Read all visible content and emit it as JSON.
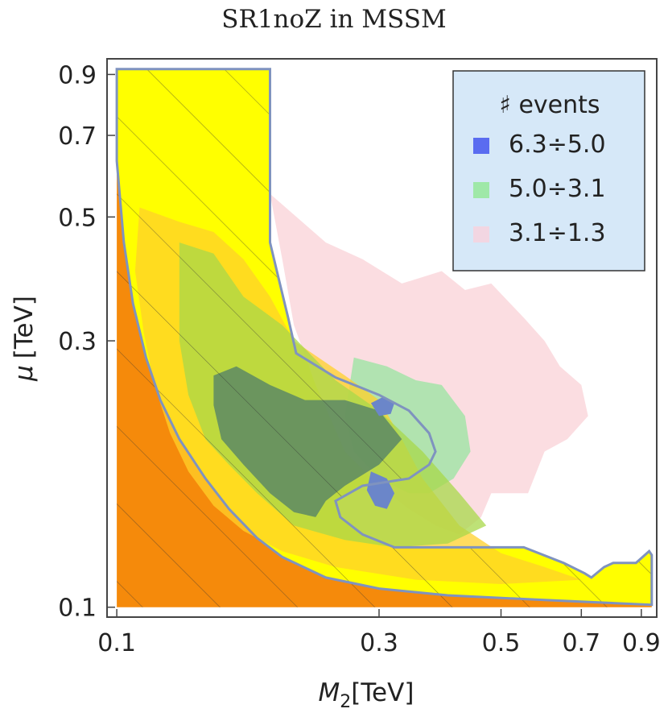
{
  "chart_data": {
    "type": "contour",
    "title": "SR1noZ in MSSM",
    "xlabel": "M2 [TeV]",
    "ylabel": "μ [TeV]",
    "xlabel_parts": {
      "symbol": "M",
      "sub": "2",
      "unit": "[TeV]"
    },
    "ylabel_parts": {
      "symbol": "μ",
      "unit": "[TeV]"
    },
    "x_scale": "log",
    "y_scale": "log",
    "xlim": [
      0.096,
      0.96
    ],
    "ylim": [
      0.096,
      0.96
    ],
    "x_ticks": [
      0.1,
      0.3,
      0.5,
      0.7,
      0.9
    ],
    "x_tick_labels": [
      "0.1",
      "0.3",
      "0.5",
      "0.7",
      "0.9"
    ],
    "y_ticks": [
      0.1,
      0.3,
      0.5,
      0.7,
      0.9
    ],
    "y_tick_labels": [
      "0.1",
      "0.3",
      "0.5",
      "0.7",
      "0.9"
    ],
    "legend": {
      "title": "♯ events",
      "position": "top-right",
      "entries": [
        {
          "label": "6.3÷5.0",
          "color": "#5a6cf0"
        },
        {
          "label": "5.0÷3.1",
          "color": "#9fe8a8"
        },
        {
          "label": "3.1÷1.3",
          "color": "#f2d6e2"
        }
      ]
    },
    "regions": {
      "excluded_orange": {
        "color": "#f58a0b",
        "boundary": [
          [
            0.1,
            0.63
          ],
          [
            0.103,
            0.45
          ],
          [
            0.107,
            0.35
          ],
          [
            0.113,
            0.28
          ],
          [
            0.12,
            0.235
          ],
          [
            0.13,
            0.2
          ],
          [
            0.145,
            0.17
          ],
          [
            0.16,
            0.15
          ],
          [
            0.18,
            0.133
          ],
          [
            0.2,
            0.123
          ],
          [
            0.24,
            0.113
          ],
          [
            0.3,
            0.108
          ],
          [
            0.4,
            0.105
          ],
          [
            0.6,
            0.103
          ],
          [
            0.94,
            0.101
          ],
          [
            0.94,
            0.1
          ],
          [
            0.1,
            0.1
          ]
        ]
      },
      "allowed_yellow": {
        "color": "#ffff00",
        "outline_color": "#7f93bf",
        "boundary": [
          [
            0.1,
            0.92
          ],
          [
            0.19,
            0.92
          ],
          [
            0.19,
            0.45
          ],
          [
            0.198,
            0.38
          ],
          [
            0.205,
            0.33
          ],
          [
            0.212,
            0.285
          ],
          [
            0.25,
            0.258
          ],
          [
            0.3,
            0.24
          ],
          [
            0.34,
            0.225
          ],
          [
            0.37,
            0.205
          ],
          [
            0.38,
            0.19
          ],
          [
            0.37,
            0.18
          ],
          [
            0.34,
            0.17
          ],
          [
            0.28,
            0.165
          ],
          [
            0.25,
            0.155
          ],
          [
            0.255,
            0.145
          ],
          [
            0.28,
            0.135
          ],
          [
            0.32,
            0.128
          ],
          [
            0.42,
            0.128
          ],
          [
            0.55,
            0.128
          ],
          [
            0.65,
            0.12
          ],
          [
            0.71,
            0.115
          ],
          [
            0.73,
            0.113
          ],
          [
            0.77,
            0.118
          ],
          [
            0.8,
            0.12
          ],
          [
            0.88,
            0.12
          ],
          [
            0.93,
            0.126
          ],
          [
            0.94,
            0.124
          ],
          [
            0.94,
            0.101
          ],
          [
            0.6,
            0.103
          ],
          [
            0.4,
            0.105
          ],
          [
            0.3,
            0.108
          ],
          [
            0.24,
            0.113
          ],
          [
            0.2,
            0.123
          ],
          [
            0.18,
            0.133
          ],
          [
            0.16,
            0.15
          ],
          [
            0.145,
            0.17
          ],
          [
            0.13,
            0.2
          ],
          [
            0.12,
            0.235
          ],
          [
            0.113,
            0.28
          ],
          [
            0.107,
            0.35
          ],
          [
            0.103,
            0.45
          ],
          [
            0.1,
            0.63
          ]
        ]
      },
      "band_orange_light": {
        "color": "#ffd02a",
        "boundary": [
          [
            0.11,
            0.52
          ],
          [
            0.13,
            0.49
          ],
          [
            0.15,
            0.47
          ],
          [
            0.17,
            0.42
          ],
          [
            0.19,
            0.36
          ],
          [
            0.21,
            0.3
          ],
          [
            0.26,
            0.26
          ],
          [
            0.3,
            0.235
          ],
          [
            0.33,
            0.2
          ],
          [
            0.36,
            0.17
          ],
          [
            0.42,
            0.14
          ],
          [
            0.5,
            0.125
          ],
          [
            0.6,
            0.118
          ],
          [
            0.7,
            0.112
          ],
          [
            0.5,
            0.11
          ],
          [
            0.35,
            0.112
          ],
          [
            0.25,
            0.118
          ],
          [
            0.2,
            0.126
          ],
          [
            0.17,
            0.137
          ],
          [
            0.15,
            0.152
          ],
          [
            0.135,
            0.175
          ],
          [
            0.125,
            0.205
          ],
          [
            0.117,
            0.25
          ],
          [
            0.112,
            0.31
          ],
          [
            0.108,
            0.4
          ]
        ]
      },
      "band_green": {
        "color": "#a8d84a",
        "boundary": [
          [
            0.13,
            0.45
          ],
          [
            0.15,
            0.43
          ],
          [
            0.17,
            0.36
          ],
          [
            0.2,
            0.32
          ],
          [
            0.25,
            0.255
          ],
          [
            0.3,
            0.225
          ],
          [
            0.36,
            0.19
          ],
          [
            0.42,
            0.16
          ],
          [
            0.47,
            0.14
          ],
          [
            0.4,
            0.13
          ],
          [
            0.32,
            0.128
          ],
          [
            0.26,
            0.132
          ],
          [
            0.21,
            0.14
          ],
          [
            0.18,
            0.16
          ],
          [
            0.16,
            0.18
          ],
          [
            0.145,
            0.2
          ],
          [
            0.135,
            0.24
          ],
          [
            0.13,
            0.3
          ]
        ]
      },
      "band_dark": {
        "color": "#4f7d6a",
        "boundary": [
          [
            0.15,
            0.26
          ],
          [
            0.165,
            0.27
          ],
          [
            0.19,
            0.25
          ],
          [
            0.22,
            0.235
          ],
          [
            0.26,
            0.235
          ],
          [
            0.3,
            0.225
          ],
          [
            0.33,
            0.2
          ],
          [
            0.3,
            0.18
          ],
          [
            0.26,
            0.165
          ],
          [
            0.24,
            0.155
          ],
          [
            0.23,
            0.145
          ],
          [
            0.21,
            0.148
          ],
          [
            0.19,
            0.16
          ],
          [
            0.17,
            0.18
          ],
          [
            0.155,
            0.2
          ],
          [
            0.15,
            0.23
          ]
        ]
      },
      "pink_cloud": {
        "color": "#fbd9de",
        "boundary": [
          [
            0.19,
            0.55
          ],
          [
            0.24,
            0.45
          ],
          [
            0.28,
            0.42
          ],
          [
            0.33,
            0.38
          ],
          [
            0.39,
            0.4
          ],
          [
            0.43,
            0.37
          ],
          [
            0.48,
            0.38
          ],
          [
            0.55,
            0.33
          ],
          [
            0.6,
            0.3
          ],
          [
            0.64,
            0.27
          ],
          [
            0.7,
            0.25
          ],
          [
            0.72,
            0.22
          ],
          [
            0.66,
            0.2
          ],
          [
            0.6,
            0.19
          ],
          [
            0.56,
            0.16
          ],
          [
            0.48,
            0.16
          ],
          [
            0.46,
            0.145
          ],
          [
            0.42,
            0.135
          ],
          [
            0.38,
            0.14
          ],
          [
            0.34,
            0.15
          ],
          [
            0.3,
            0.165
          ],
          [
            0.26,
            0.19
          ],
          [
            0.23,
            0.25
          ],
          [
            0.21,
            0.32
          ],
          [
            0.2,
            0.42
          ]
        ]
      },
      "green_cloud": {
        "color": "#a9e3ac",
        "boundary": [
          [
            0.27,
            0.28
          ],
          [
            0.31,
            0.27
          ],
          [
            0.35,
            0.255
          ],
          [
            0.39,
            0.25
          ],
          [
            0.43,
            0.22
          ],
          [
            0.44,
            0.19
          ],
          [
            0.41,
            0.17
          ],
          [
            0.37,
            0.16
          ],
          [
            0.34,
            0.16
          ],
          [
            0.3,
            0.17
          ],
          [
            0.27,
            0.19
          ],
          [
            0.26,
            0.22
          ]
        ]
      },
      "blue_patch": {
        "color": "#6b86c9",
        "boundary": [
          [
            0.29,
            0.232
          ],
          [
            0.305,
            0.238
          ],
          [
            0.32,
            0.232
          ],
          [
            0.315,
            0.222
          ],
          [
            0.3,
            0.22
          ]
        ]
      },
      "blue_patch_2": {
        "color": "#6b86c9",
        "boundary": [
          [
            0.29,
            0.175
          ],
          [
            0.31,
            0.17
          ],
          [
            0.32,
            0.16
          ],
          [
            0.31,
            0.15
          ],
          [
            0.295,
            0.152
          ],
          [
            0.285,
            0.162
          ]
        ]
      }
    }
  }
}
